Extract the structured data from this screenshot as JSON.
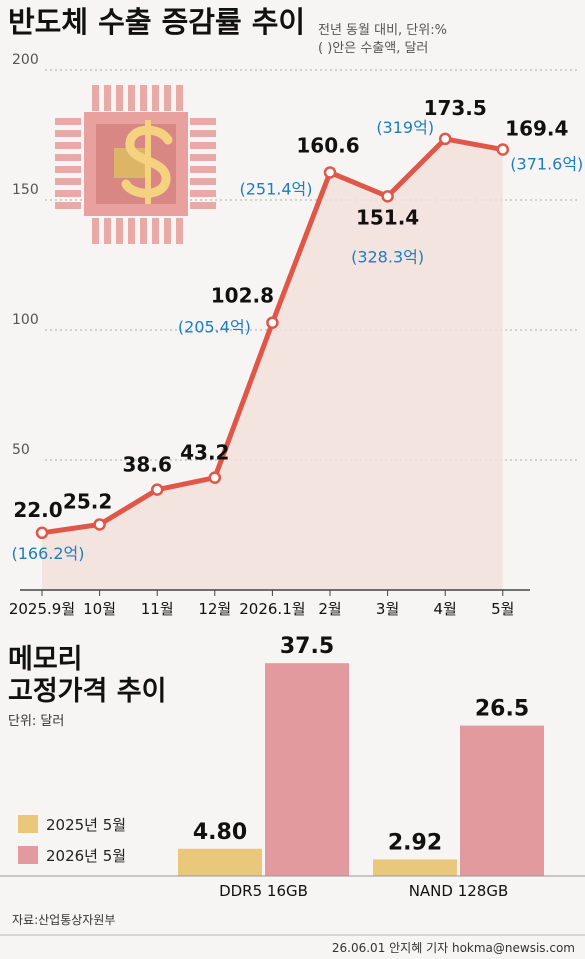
{
  "chart_data": [
    {
      "type": "line",
      "title": "반도체 수출 증감률 추이",
      "subtitle": [
        "전년 동월 대비, 단위:%",
        "( )안은 수출액, 달러"
      ],
      "categories": [
        "2025.9월",
        "10월",
        "11월",
        "12월",
        "2026.1월",
        "2월",
        "3월",
        "4월",
        "5월"
      ],
      "values": [
        22.0,
        25.2,
        38.6,
        43.2,
        102.8,
        160.6,
        151.4,
        173.5,
        169.4
      ],
      "value_labels": [
        "22.0",
        "25.2",
        "38.6",
        "43.2",
        "102.8",
        "160.6",
        "151.4",
        "173.5",
        "169.4"
      ],
      "export_labels": [
        "(166.2억)",
        null,
        null,
        null,
        "(205.4억)",
        "(251.4억)",
        "(328.3억)",
        "(319억)",
        "(371.6억)"
      ],
      "color": "#e0574a",
      "area_color": "#f3e1dc",
      "ylim": [
        0,
        200
      ],
      "yticks": [
        50,
        100,
        150,
        200
      ],
      "grid": true
    },
    {
      "type": "bar",
      "title_lines": [
        "메모리",
        "고정가격 추이"
      ],
      "unit": "단위: 달러",
      "categories": [
        "DDR5 16GB",
        "NAND 128GB"
      ],
      "series": [
        {
          "name": "2025년 5월",
          "color": "#e9c77b",
          "values": [
            4.8,
            2.92
          ],
          "value_labels": [
            "4.80",
            "2.92"
          ]
        },
        {
          "name": "2026년 5월",
          "color": "#e29a9e",
          "values": [
            37.5,
            26.5
          ]
        }
      ],
      "ylim": [
        0,
        40
      ]
    }
  ],
  "source": "자료:산업통상자원부",
  "credit": "26.06.01 안지혜 기자 hokma@newsis.com"
}
